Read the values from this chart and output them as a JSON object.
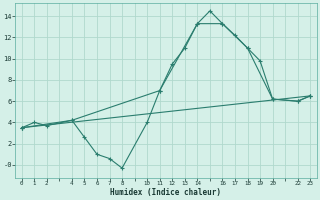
{
  "xlabel": "Humidex (Indice chaleur)",
  "background_color": "#d5f0e8",
  "grid_color": "#b0d9cd",
  "line_color": "#2a7d6e",
  "series1_x": [
    0,
    1,
    2,
    4,
    5,
    6,
    7,
    8,
    10,
    11,
    12,
    13,
    14,
    15,
    16,
    17,
    18,
    19,
    20,
    22,
    23
  ],
  "series1_y": [
    3.5,
    4.0,
    3.7,
    4.2,
    2.6,
    1.0,
    0.6,
    -0.3,
    4.0,
    7.0,
    9.5,
    11.0,
    13.3,
    14.5,
    13.3,
    12.2,
    11.0,
    9.8,
    6.2,
    6.0,
    6.5
  ],
  "series2_x": [
    0,
    4,
    11,
    14,
    16,
    18,
    20,
    22,
    23
  ],
  "series2_y": [
    3.5,
    4.2,
    7.0,
    13.3,
    13.3,
    11.0,
    6.2,
    6.0,
    6.5
  ],
  "series3_x": [
    0,
    23
  ],
  "series3_y": [
    3.5,
    6.5
  ],
  "xtick_vals": [
    0,
    1,
    2,
    4,
    5,
    6,
    7,
    8,
    10,
    11,
    12,
    13,
    14,
    16,
    17,
    18,
    19,
    20,
    22,
    23
  ],
  "xtick_labels": [
    "0",
    "1",
    "2",
    "4",
    "5",
    "6",
    "7",
    "8",
    "10",
    "11",
    "12",
    "13",
    "14",
    "16",
    "17",
    "18",
    "19",
    "20",
    "22",
    "23"
  ],
  "ytick_vals": [
    0,
    2,
    4,
    6,
    8,
    10,
    12,
    14
  ],
  "ytick_labels": [
    "-0",
    "2",
    "4",
    "6",
    "8",
    "10",
    "12",
    "14"
  ],
  "xlim": [
    -0.5,
    23.5
  ],
  "ylim": [
    -1.2,
    15.2
  ]
}
